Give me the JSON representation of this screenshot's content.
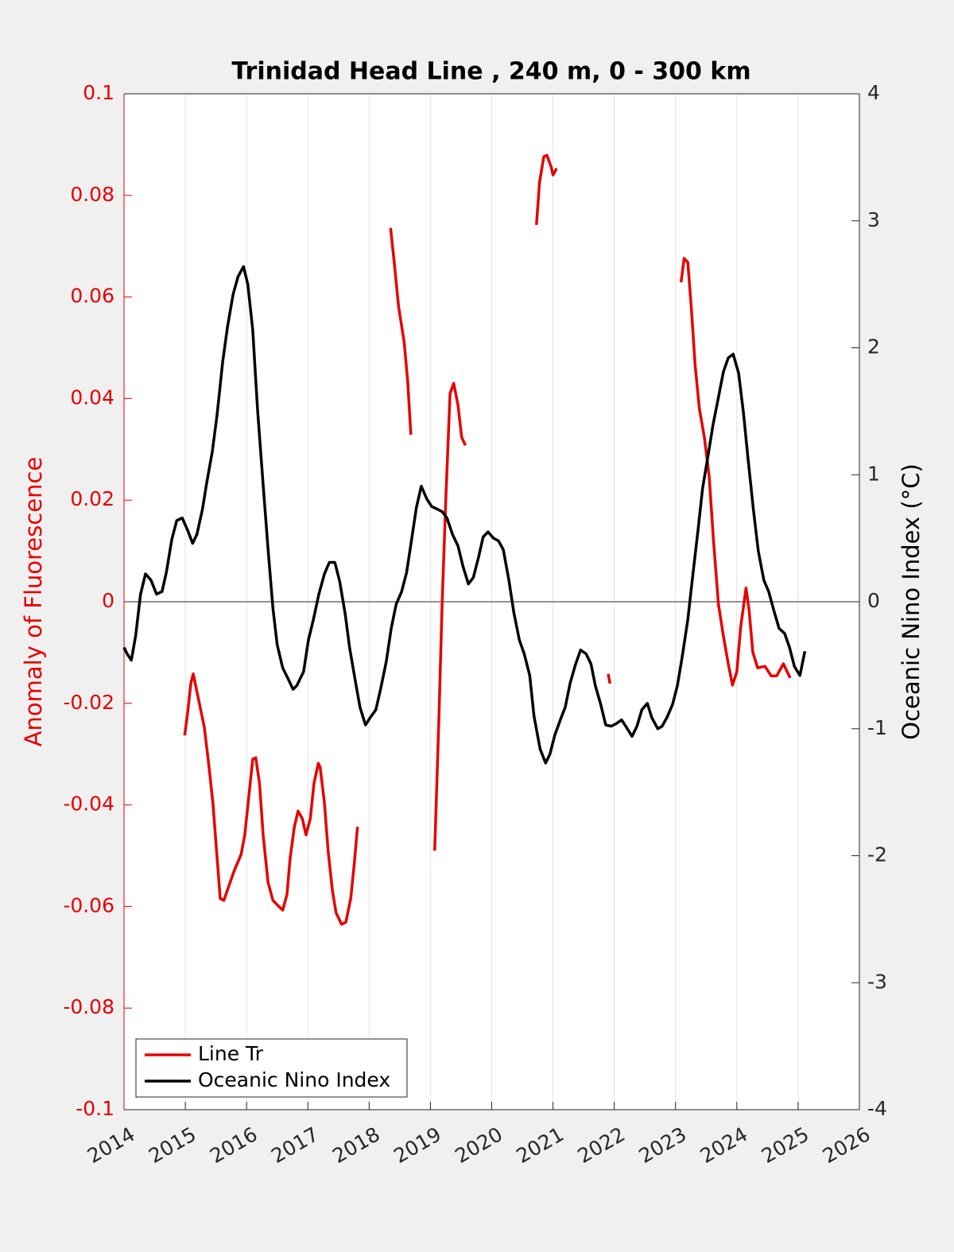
{
  "chart_data": {
    "type": "line",
    "title": "Trinidad Head Line , 240 m, 0 - 300 km",
    "ylabel": "Anomaly of Fluorescence",
    "y2label": "Oceanic Nino Index (°C)",
    "xlim": [
      2014,
      2026
    ],
    "xticks": [
      2014,
      2015,
      2016,
      2017,
      2018,
      2019,
      2020,
      2021,
      2022,
      2023,
      2024,
      2025,
      2026
    ],
    "ylim": [
      -0.1,
      0.1
    ],
    "yticks": [
      -0.1,
      -0.08,
      -0.06,
      -0.04,
      -0.02,
      0,
      0.02,
      0.04,
      0.06,
      0.08,
      0.1
    ],
    "y2lim": [
      -4,
      4
    ],
    "y2ticks": [
      -4,
      -3,
      -2,
      -1,
      0,
      1,
      2,
      3,
      4
    ],
    "xgrid": true,
    "zero_line": true,
    "legend": "lower left",
    "series": [
      {
        "name": "Line Tr",
        "color": "#e60000",
        "x": [
          2014.99,
          2015.04,
          2015.09,
          2015.13,
          2015.19,
          2015.31,
          2015.38,
          2015.45,
          2015.5,
          2015.57,
          2015.63,
          2015.71,
          2015.8,
          2015.91,
          2015.97,
          2016.04,
          2016.1,
          2016.15,
          2016.21,
          2016.27,
          2016.35,
          2016.43,
          2016.52,
          2016.59,
          2016.66,
          2016.71,
          2016.78,
          2016.84,
          2016.91,
          2016.97,
          2017.04,
          2017.1,
          2017.17,
          2017.2,
          2017.27,
          2017.33,
          2017.4,
          2017.46,
          2017.55,
          2017.62,
          2017.7,
          2017.76,
          2017.81,
          null,
          2018.35,
          2018.41,
          2018.48,
          2018.57,
          2018.63,
          2018.68,
          null,
          2019.07,
          2019.14,
          2019.19,
          2019.25,
          2019.32,
          2019.38,
          2019.45,
          2019.51,
          2019.57,
          null,
          2020.73,
          2020.78,
          2020.85,
          2020.9,
          2020.97,
          2021.0,
          2021.06,
          null,
          2021.9,
          2021.93,
          null,
          2023.09,
          2023.14,
          2023.2,
          2023.26,
          2023.32,
          2023.39,
          2023.47,
          2023.55,
          2023.62,
          2023.7,
          2023.78,
          2023.86,
          2023.93,
          2024.0,
          2024.06,
          2024.15,
          2024.2,
          2024.26,
          2024.34,
          2024.46,
          2024.56,
          2024.65,
          2024.76,
          2024.87
        ],
        "values": [
          -0.0263,
          -0.0216,
          -0.0161,
          -0.0142,
          -0.0177,
          -0.0247,
          -0.0318,
          -0.0396,
          -0.0474,
          -0.0584,
          -0.0588,
          -0.056,
          -0.0529,
          -0.0498,
          -0.0459,
          -0.038,
          -0.031,
          -0.0307,
          -0.0357,
          -0.0459,
          -0.0552,
          -0.0588,
          -0.0599,
          -0.0607,
          -0.0576,
          -0.0505,
          -0.0443,
          -0.0412,
          -0.0427,
          -0.0459,
          -0.0427,
          -0.0357,
          -0.0318,
          -0.0326,
          -0.0396,
          -0.049,
          -0.0568,
          -0.0612,
          -0.0635,
          -0.0631,
          -0.0584,
          -0.0513,
          -0.0443,
          null,
          0.0736,
          0.0668,
          0.0582,
          0.0512,
          0.0433,
          0.0329,
          null,
          -0.049,
          -0.0224,
          -0.0005,
          0.0199,
          0.041,
          0.043,
          0.0387,
          0.0324,
          0.0308,
          null,
          0.0742,
          0.0825,
          0.0876,
          0.0879,
          0.0856,
          0.084,
          0.0853,
          null,
          -0.0142,
          -0.0161,
          null,
          0.0629,
          0.0676,
          0.0668,
          0.0574,
          0.0465,
          0.0379,
          0.0324,
          0.0246,
          0.012,
          -0.0005,
          -0.0067,
          -0.0122,
          -0.0164,
          -0.0138,
          -0.0052,
          0.0027,
          -0.0017,
          -0.0099,
          -0.013,
          -0.0127,
          -0.0146,
          -0.0146,
          -0.0122,
          -0.015
        ]
      },
      {
        "name": "Oceanic Nino Index",
        "color": "#000000",
        "axis": "y2",
        "x": [
          2014.0,
          2014.05,
          2014.12,
          2014.19,
          2014.27,
          2014.35,
          2014.44,
          2014.53,
          2014.62,
          2014.69,
          2014.78,
          2014.86,
          2014.95,
          2015.04,
          2015.12,
          2015.19,
          2015.28,
          2015.35,
          2015.44,
          2015.52,
          2015.61,
          2015.69,
          2015.78,
          2015.86,
          2015.95,
          2016.02,
          2016.1,
          2016.18,
          2016.27,
          2016.35,
          2016.43,
          2016.5,
          2016.59,
          2016.68,
          2016.76,
          2016.82,
          2016.93,
          2017.01,
          2017.09,
          2017.18,
          2017.27,
          2017.35,
          2017.44,
          2017.52,
          2017.61,
          2017.68,
          2017.78,
          2017.85,
          2017.94,
          2018.02,
          2018.11,
          2018.19,
          2018.28,
          2018.36,
          2018.44,
          2018.53,
          2018.61,
          2018.69,
          2018.77,
          2018.85,
          2018.94,
          2019.02,
          2019.11,
          2019.19,
          2019.27,
          2019.36,
          2019.45,
          2019.53,
          2019.62,
          2019.7,
          2019.79,
          2019.86,
          2019.94,
          2020.03,
          2020.11,
          2020.19,
          2020.28,
          2020.36,
          2020.45,
          2020.53,
          2020.62,
          2020.69,
          2020.79,
          2020.88,
          2020.95,
          2021.03,
          2021.12,
          2021.2,
          2021.28,
          2021.37,
          2021.45,
          2021.54,
          2021.62,
          2021.69,
          2021.78,
          2021.86,
          2021.95,
          2022.03,
          2022.12,
          2022.2,
          2022.29,
          2022.37,
          2022.45,
          2022.54,
          2022.61,
          2022.71,
          2022.78,
          2022.86,
          2022.95,
          2023.03,
          2023.11,
          2023.2,
          2023.28,
          2023.37,
          2023.44,
          2023.54,
          2023.61,
          2023.7,
          2023.78,
          2023.86,
          2023.94,
          2024.03,
          2024.11,
          2024.18,
          2024.27,
          2024.35,
          2024.44,
          2024.52,
          2024.61,
          2024.69,
          2024.78,
          2024.86,
          2024.94,
          2025.03,
          2025.11
        ],
        "values": [
          -0.36,
          -0.41,
          -0.46,
          -0.27,
          0.06,
          0.22,
          0.17,
          0.06,
          0.08,
          0.23,
          0.49,
          0.64,
          0.66,
          0.56,
          0.46,
          0.53,
          0.73,
          0.94,
          1.18,
          1.48,
          1.89,
          2.17,
          2.42,
          2.56,
          2.64,
          2.5,
          2.14,
          1.51,
          0.92,
          0.42,
          -0.05,
          -0.34,
          -0.52,
          -0.61,
          -0.69,
          -0.66,
          -0.55,
          -0.3,
          -0.14,
          0.06,
          0.22,
          0.31,
          0.31,
          0.16,
          -0.1,
          -0.36,
          -0.64,
          -0.83,
          -0.97,
          -0.91,
          -0.85,
          -0.68,
          -0.47,
          -0.21,
          -0.02,
          0.08,
          0.23,
          0.48,
          0.74,
          0.91,
          0.81,
          0.75,
          0.73,
          0.71,
          0.66,
          0.53,
          0.44,
          0.28,
          0.14,
          0.19,
          0.36,
          0.51,
          0.55,
          0.5,
          0.48,
          0.41,
          0.17,
          -0.08,
          -0.3,
          -0.41,
          -0.58,
          -0.9,
          -1.16,
          -1.27,
          -1.2,
          -1.05,
          -0.93,
          -0.83,
          -0.64,
          -0.49,
          -0.38,
          -0.41,
          -0.49,
          -0.66,
          -0.81,
          -0.97,
          -0.98,
          -0.96,
          -0.93,
          -0.99,
          -1.06,
          -0.98,
          -0.85,
          -0.8,
          -0.91,
          -1.0,
          -0.98,
          -0.91,
          -0.81,
          -0.66,
          -0.43,
          -0.14,
          0.2,
          0.58,
          0.89,
          1.18,
          1.39,
          1.61,
          1.81,
          1.92,
          1.95,
          1.8,
          1.48,
          1.14,
          0.73,
          0.4,
          0.17,
          0.08,
          -0.08,
          -0.21,
          -0.25,
          -0.36,
          -0.51,
          -0.58,
          -0.39
        ]
      }
    ]
  }
}
